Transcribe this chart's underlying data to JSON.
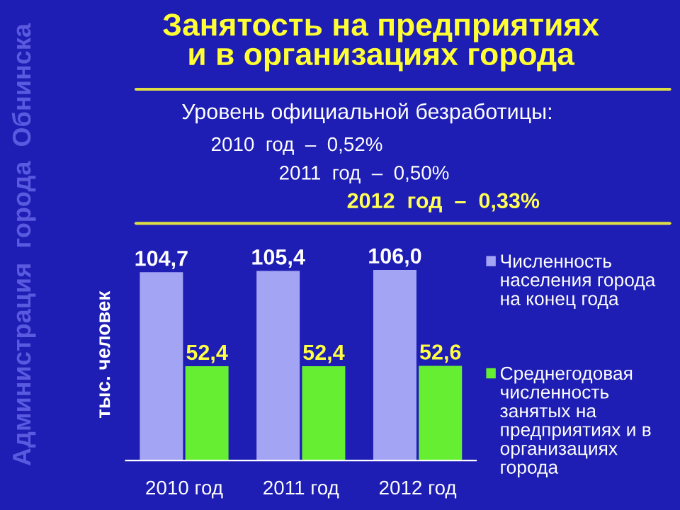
{
  "chart_data": {
    "type": "bar",
    "title": "Занятость на предприятиях\nи в организациях города",
    "categories": [
      "2010 год",
      "2011 год",
      "2012 год"
    ],
    "series": [
      {
        "name": "Численность населения города на конец года",
        "color": "#a4a4f4",
        "values": [
          104.7,
          105.4,
          106.0
        ],
        "value_labels": [
          "104,7",
          "105,4",
          "106,0"
        ]
      },
      {
        "name": "Среднегодовая численность занятых на предприятиях и в организациях города",
        "color": "#66ee33",
        "values": [
          52.4,
          52.4,
          52.6
        ],
        "value_labels": [
          "52,4",
          "52,4",
          "52,6"
        ]
      }
    ],
    "ylabel": "тыс. человек",
    "legend": "right",
    "grid": false,
    "annotations": [
      "Уровень официальной безработицы:",
      "2010  год  –  0,52%",
      "2011  год  –  0,50%",
      "2012  год  –  0,33%",
      "Администрация  города  Обнинска"
    ]
  }
}
